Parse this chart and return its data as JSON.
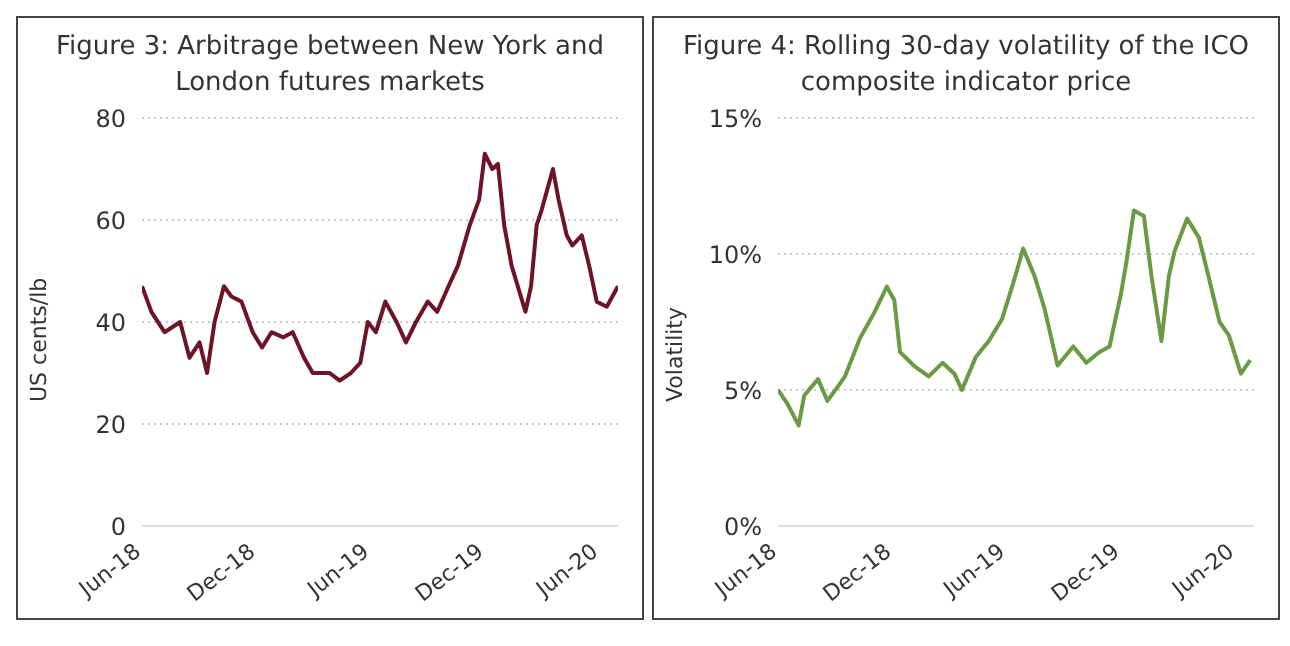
{
  "chart_data": [
    {
      "type": "line",
      "title": "Figure 3:  Arbitrage between New York and London futures markets",
      "ylabel": "US cents/lb",
      "x": [
        "2018-06-01",
        "2018-06-16",
        "2018-07-07",
        "2018-08-01",
        "2018-08-16",
        "2018-09-01",
        "2018-09-13",
        "2018-09-25",
        "2018-10-10",
        "2018-10-22",
        "2018-11-07",
        "2018-11-25",
        "2018-12-10",
        "2018-12-25",
        "2019-01-13",
        "2019-01-28",
        "2019-02-15",
        "2019-03-01",
        "2019-03-28",
        "2019-04-13",
        "2019-05-01",
        "2019-05-16",
        "2019-05-28",
        "2019-06-10",
        "2019-06-25",
        "2019-07-13",
        "2019-07-28",
        "2019-08-13",
        "2019-09-01",
        "2019-09-16",
        "2019-10-04",
        "2019-10-19",
        "2019-11-07",
        "2019-11-22",
        "2019-12-01",
        "2019-12-13",
        "2019-12-22",
        "2020-01-01",
        "2020-01-13",
        "2020-02-04",
        "2020-02-13",
        "2020-02-22",
        "2020-03-01",
        "2020-03-10",
        "2020-03-19",
        "2020-03-28",
        "2020-04-10",
        "2020-04-19",
        "2020-05-04",
        "2020-05-16",
        "2020-05-28",
        "2020-06-13",
        "2020-07-01"
      ],
      "series": [
        {
          "color": "#6e1427",
          "values": [
            47,
            42,
            38,
            40,
            33,
            36,
            30,
            40,
            47,
            45,
            44,
            38,
            35,
            38,
            37,
            38,
            33,
            30,
            30,
            28.5,
            30,
            32,
            40,
            38,
            44,
            40,
            36,
            40,
            44,
            42,
            47,
            51,
            59,
            64,
            73,
            70,
            71,
            59,
            51,
            42,
            47,
            59,
            62,
            66,
            70,
            64,
            57,
            55,
            57,
            51,
            44,
            43,
            47
          ]
        }
      ],
      "xlim": [
        "2018-06-01",
        "2020-07-01"
      ],
      "xticks": [
        {
          "value": "2018-06-01",
          "label": "Jun-18"
        },
        {
          "value": "2018-12-01",
          "label": "Dec-18"
        },
        {
          "value": "2019-06-01",
          "label": "Jun-19"
        },
        {
          "value": "2019-12-01",
          "label": "Dec-19"
        },
        {
          "value": "2020-06-01",
          "label": "Jun-20"
        }
      ],
      "ylim": [
        0,
        80
      ],
      "yticks": [
        0,
        20,
        40,
        60,
        80
      ],
      "grid": "y"
    },
    {
      "type": "line",
      "title": "Figure 4:  Rolling 30-day volatility of the ICO  composite indicator price",
      "ylabel": "Volatility",
      "x": [
        "2018-06-01",
        "2018-06-16",
        "2018-07-04",
        "2018-07-13",
        "2018-08-04",
        "2018-08-19",
        "2018-09-07",
        "2018-09-16",
        "2018-10-10",
        "2018-11-01",
        "2018-11-22",
        "2018-12-04",
        "2018-12-13",
        "2019-01-04",
        "2019-01-28",
        "2019-02-19",
        "2019-03-10",
        "2019-03-22",
        "2019-04-13",
        "2019-05-04",
        "2019-05-25",
        "2019-06-13",
        "2019-06-28",
        "2019-07-16",
        "2019-08-01",
        "2019-08-22",
        "2019-09-16",
        "2019-10-07",
        "2019-10-28",
        "2019-11-13",
        "2019-12-01",
        "2019-12-10",
        "2019-12-22",
        "2020-01-07",
        "2020-01-19",
        "2020-02-04",
        "2020-02-16",
        "2020-02-25",
        "2020-03-16",
        "2020-04-04",
        "2020-04-19",
        "2020-05-07",
        "2020-05-22",
        "2020-06-10",
        "2020-06-25"
      ],
      "series": [
        {
          "color": "#6b9a45",
          "values": [
            5.0,
            4.5,
            3.7,
            4.8,
            5.4,
            4.6,
            5.2,
            5.5,
            6.9,
            7.8,
            8.8,
            8.3,
            6.4,
            5.9,
            5.5,
            6.0,
            5.6,
            5.0,
            6.2,
            6.8,
            7.6,
            9.0,
            10.2,
            9.2,
            8.0,
            5.9,
            6.6,
            6.0,
            6.4,
            6.6,
            8.5,
            9.7,
            11.6,
            11.4,
            9.2,
            6.8,
            9.2,
            10.1,
            11.3,
            10.6,
            9.2,
            7.5,
            7.0,
            5.6,
            6.1
          ]
        }
      ],
      "xlim": [
        "2018-06-01",
        "2020-07-01"
      ],
      "xticks": [
        {
          "value": "2018-06-01",
          "label": "Jun-18"
        },
        {
          "value": "2018-12-01",
          "label": "Dec-18"
        },
        {
          "value": "2019-06-01",
          "label": "Jun-19"
        },
        {
          "value": "2019-12-01",
          "label": "Dec-19"
        },
        {
          "value": "2020-06-01",
          "label": "Jun-20"
        }
      ],
      "ylim": [
        0,
        15
      ],
      "yticks": [
        {
          "value": 0,
          "label": "0%"
        },
        {
          "value": 5,
          "label": "5%"
        },
        {
          "value": 10,
          "label": "10%"
        },
        {
          "value": 15,
          "label": "15%"
        }
      ],
      "grid": "y"
    }
  ]
}
